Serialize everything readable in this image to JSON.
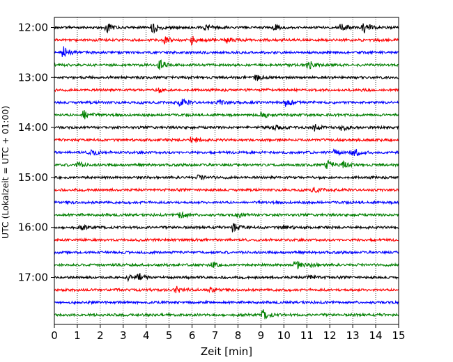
{
  "chart_data": {
    "type": "line",
    "xlabel": "Zeit  [min]",
    "ylabel": "UTC (Lokalzeit = UTC + 01:00)",
    "xlim": [
      0,
      15
    ],
    "x_ticks": [
      "0",
      "1",
      "2",
      "3",
      "4",
      "5",
      "6",
      "7",
      "8",
      "9",
      "10",
      "11",
      "12",
      "13",
      "14",
      "15"
    ],
    "y_ticks": [
      {
        "label": "12:00",
        "row": 0
      },
      {
        "label": "13:00",
        "row": 4
      },
      {
        "label": "14:00",
        "row": 8
      },
      {
        "label": "15:00",
        "row": 12
      },
      {
        "label": "16:00",
        "row": 16
      },
      {
        "label": "17:00",
        "row": 20
      }
    ],
    "row_interval_minutes": 15,
    "x_grid": true,
    "grid_style": "dotted",
    "row_colors": [
      "#000000",
      "#ff0000",
      "#0000ff",
      "#008000"
    ],
    "traces": [
      {
        "start": "12:00",
        "color": "#000000",
        "events": [
          {
            "t": 2.3,
            "a": 1.0
          },
          {
            "t": 4.3,
            "a": 1.3
          },
          {
            "t": 6.6,
            "a": 0.7
          },
          {
            "t": 9.6,
            "a": 0.6
          },
          {
            "t": 12.5,
            "a": 0.8
          },
          {
            "t": 13.5,
            "a": 1.2
          }
        ]
      },
      {
        "start": "12:15",
        "color": "#ff0000",
        "events": [
          {
            "t": 4.8,
            "a": 1.0
          },
          {
            "t": 6.0,
            "a": 1.1
          },
          {
            "t": 7.5,
            "a": 0.6
          }
        ]
      },
      {
        "start": "12:30",
        "color": "#0000ff",
        "events": [
          {
            "t": 0.4,
            "a": 1.2
          }
        ]
      },
      {
        "start": "12:45",
        "color": "#008000",
        "events": [
          {
            "t": 4.6,
            "a": 1.2
          },
          {
            "t": 11.1,
            "a": 1.0
          }
        ]
      },
      {
        "start": "13:00",
        "color": "#000000",
        "events": [
          {
            "t": 8.8,
            "a": 1.2
          }
        ]
      },
      {
        "start": "13:15",
        "color": "#ff0000",
        "events": [
          {
            "t": 4.5,
            "a": 0.6
          }
        ]
      },
      {
        "start": "13:30",
        "color": "#0000ff",
        "events": [
          {
            "t": 5.5,
            "a": 1.0
          },
          {
            "t": 7.2,
            "a": 0.6
          },
          {
            "t": 10.1,
            "a": 1.2
          }
        ]
      },
      {
        "start": "13:45",
        "color": "#008000",
        "events": [
          {
            "t": 1.3,
            "a": 1.3
          },
          {
            "t": 9.0,
            "a": 0.8
          }
        ]
      },
      {
        "start": "14:00",
        "color": "#000000",
        "events": [
          {
            "t": 9.6,
            "a": 0.6
          },
          {
            "t": 11.3,
            "a": 0.8
          },
          {
            "t": 12.5,
            "a": 0.8
          }
        ]
      },
      {
        "start": "14:15",
        "color": "#ff0000",
        "events": [
          {
            "t": 6.0,
            "a": 0.9
          }
        ]
      },
      {
        "start": "14:30",
        "color": "#0000ff",
        "events": [
          {
            "t": 1.6,
            "a": 0.9
          },
          {
            "t": 12.2,
            "a": 0.6
          },
          {
            "t": 13.0,
            "a": 1.3
          }
        ]
      },
      {
        "start": "14:45",
        "color": "#008000",
        "events": [
          {
            "t": 1.0,
            "a": 0.8
          },
          {
            "t": 11.9,
            "a": 1.0
          },
          {
            "t": 12.6,
            "a": 0.6
          }
        ]
      },
      {
        "start": "15:00",
        "color": "#000000",
        "events": [
          {
            "t": 6.3,
            "a": 0.5
          }
        ]
      },
      {
        "start": "15:15",
        "color": "#ff0000",
        "events": [
          {
            "t": 11.3,
            "a": 0.6
          }
        ]
      },
      {
        "start": "15:30",
        "color": "#0000ff",
        "events": []
      },
      {
        "start": "15:45",
        "color": "#008000",
        "events": [
          {
            "t": 5.5,
            "a": 1.1
          },
          {
            "t": 8.0,
            "a": 0.6
          }
        ]
      },
      {
        "start": "16:00",
        "color": "#000000",
        "events": [
          {
            "t": 1.2,
            "a": 0.5
          },
          {
            "t": 7.8,
            "a": 1.1
          },
          {
            "t": 10.0,
            "a": 0.5
          }
        ]
      },
      {
        "start": "16:15",
        "color": "#ff0000",
        "events": []
      },
      {
        "start": "16:30",
        "color": "#0000ff",
        "events": []
      },
      {
        "start": "16:45",
        "color": "#008000",
        "events": [
          {
            "t": 6.9,
            "a": 0.5
          },
          {
            "t": 10.5,
            "a": 1.0
          },
          {
            "t": 11.2,
            "a": 0.5
          }
        ]
      },
      {
        "start": "17:00",
        "color": "#000000",
        "events": [
          {
            "t": 3.2,
            "a": 0.6
          },
          {
            "t": 3.7,
            "a": 1.0
          },
          {
            "t": 11.1,
            "a": 0.6
          }
        ]
      },
      {
        "start": "17:15",
        "color": "#ff0000",
        "events": [
          {
            "t": 5.3,
            "a": 0.9
          },
          {
            "t": 6.8,
            "a": 0.5
          }
        ]
      },
      {
        "start": "17:30",
        "color": "#0000ff",
        "events": []
      },
      {
        "start": "17:45",
        "color": "#008000",
        "events": [
          {
            "t": 9.1,
            "a": 1.1
          }
        ]
      }
    ]
  }
}
